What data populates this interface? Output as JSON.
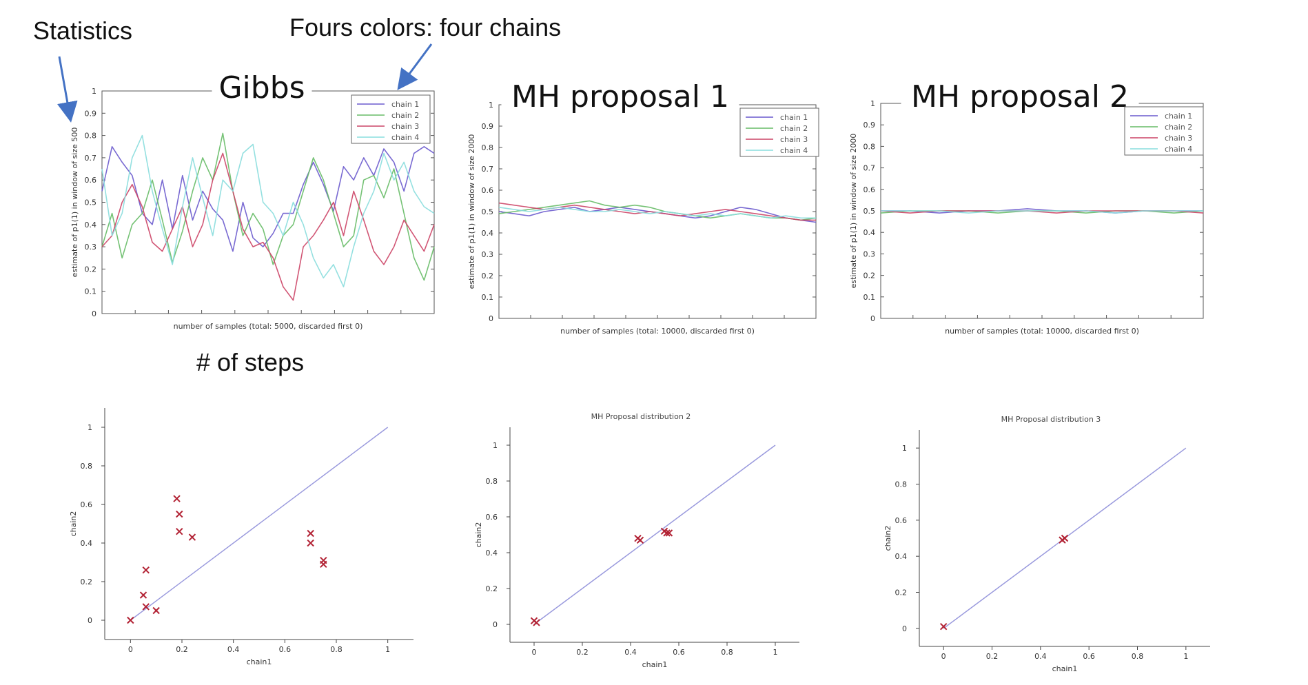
{
  "annotations": {
    "statistics": "Statistics",
    "four_colors": "Fours colors: four chains",
    "steps": "# of steps"
  },
  "colors": {
    "chain1": "#6a5acd",
    "chain2": "#66bb66",
    "chain3": "#cc4466",
    "chain4": "#88dddd",
    "marker": "#b22234",
    "diagonal": "#9999dd",
    "arrow": "#4472c4"
  },
  "chart_data": [
    {
      "type": "line",
      "title": "Gibbs",
      "xlabel": "number of samples (total: 5000, discarded first 0)",
      "ylabel": "estimate of p1(1) in window of size 500",
      "ylim": [
        0,
        1
      ],
      "yticks": [
        "0",
        "0.1",
        "0.2",
        "0.3",
        "0.4",
        "0.5",
        "0.6",
        "0.7",
        "0.8",
        "0.9",
        "1"
      ],
      "legend": "top-right",
      "series": [
        {
          "name": "chain 1",
          "values": [
            0.55,
            0.75,
            0.68,
            0.62,
            0.45,
            0.4,
            0.6,
            0.38,
            0.62,
            0.42,
            0.55,
            0.47,
            0.42,
            0.28,
            0.5,
            0.34,
            0.3,
            0.36,
            0.45,
            0.45,
            0.58,
            0.68,
            0.58,
            0.46,
            0.66,
            0.6,
            0.7,
            0.62,
            0.74,
            0.68,
            0.55,
            0.72,
            0.75,
            0.72
          ]
        },
        {
          "name": "chain 2",
          "values": [
            0.3,
            0.45,
            0.25,
            0.4,
            0.45,
            0.6,
            0.42,
            0.23,
            0.37,
            0.55,
            0.7,
            0.6,
            0.81,
            0.55,
            0.35,
            0.45,
            0.38,
            0.22,
            0.35,
            0.4,
            0.55,
            0.7,
            0.6,
            0.45,
            0.3,
            0.35,
            0.6,
            0.62,
            0.52,
            0.65,
            0.45,
            0.25,
            0.15,
            0.3
          ]
        },
        {
          "name": "chain 3",
          "values": [
            0.3,
            0.35,
            0.5,
            0.58,
            0.48,
            0.32,
            0.28,
            0.38,
            0.48,
            0.3,
            0.4,
            0.6,
            0.72,
            0.55,
            0.38,
            0.3,
            0.32,
            0.25,
            0.12,
            0.06,
            0.3,
            0.35,
            0.42,
            0.5,
            0.35,
            0.55,
            0.42,
            0.28,
            0.22,
            0.3,
            0.42,
            0.35,
            0.28,
            0.4
          ]
        },
        {
          "name": "chain 4",
          "values": [
            0.65,
            0.35,
            0.45,
            0.7,
            0.8,
            0.55,
            0.38,
            0.22,
            0.48,
            0.7,
            0.52,
            0.35,
            0.6,
            0.55,
            0.72,
            0.76,
            0.5,
            0.45,
            0.35,
            0.5,
            0.4,
            0.25,
            0.16,
            0.22,
            0.12,
            0.3,
            0.45,
            0.55,
            0.72,
            0.6,
            0.68,
            0.55,
            0.48,
            0.45
          ]
        }
      ]
    },
    {
      "type": "line",
      "title": "MH proposal 1",
      "xlabel": "number of samples (total: 10000, discarded first 0)",
      "ylabel": "estimate of p1(1) in window of size 2000",
      "ylim": [
        0,
        1
      ],
      "yticks": [
        "0",
        "0.1",
        "0.2",
        "0.3",
        "0.4",
        "0.5",
        "0.6",
        "0.7",
        "0.8",
        "0.9",
        "1"
      ],
      "legend": "top-right",
      "series": [
        {
          "name": "chain 1",
          "values": [
            0.5,
            0.49,
            0.48,
            0.5,
            0.51,
            0.52,
            0.5,
            0.51,
            0.52,
            0.51,
            0.5,
            0.49,
            0.48,
            0.47,
            0.48,
            0.5,
            0.52,
            0.51,
            0.49,
            0.47,
            0.46,
            0.45
          ]
        },
        {
          "name": "chain 2",
          "values": [
            0.49,
            0.5,
            0.51,
            0.52,
            0.53,
            0.54,
            0.55,
            0.53,
            0.52,
            0.53,
            0.52,
            0.5,
            0.49,
            0.48,
            0.47,
            0.48,
            0.49,
            0.48,
            0.47,
            0.47,
            0.46,
            0.47
          ]
        },
        {
          "name": "chain 3",
          "values": [
            0.54,
            0.53,
            0.52,
            0.51,
            0.52,
            0.53,
            0.52,
            0.51,
            0.5,
            0.49,
            0.5,
            0.49,
            0.48,
            0.49,
            0.5,
            0.51,
            0.5,
            0.49,
            0.48,
            0.47,
            0.46,
            0.46
          ]
        },
        {
          "name": "chain 4",
          "values": [
            0.52,
            0.51,
            0.5,
            0.51,
            0.52,
            0.51,
            0.5,
            0.5,
            0.51,
            0.5,
            0.49,
            0.5,
            0.49,
            0.48,
            0.49,
            0.48,
            0.49,
            0.48,
            0.47,
            0.48,
            0.47,
            0.47
          ]
        }
      ]
    },
    {
      "type": "line",
      "title": "MH proposal 2",
      "xlabel": "number of samples (total: 10000, discarded first 0)",
      "ylabel": "estimate of p1(1) in window of size 2000",
      "ylim": [
        0,
        1
      ],
      "yticks": [
        "0",
        "0.1",
        "0.2",
        "0.3",
        "0.4",
        "0.5",
        "0.6",
        "0.7",
        "0.8",
        "0.9",
        "1"
      ],
      "legend": "top-right",
      "series": [
        {
          "name": "chain 1",
          "values": [
            0.5,
            0.5,
            0.49,
            0.5,
            0.5,
            0.51,
            0.5,
            0.5,
            0.49,
            0.5,
            0.5,
            0.5
          ]
        },
        {
          "name": "chain 2",
          "values": [
            0.49,
            0.5,
            0.5,
            0.5,
            0.49,
            0.5,
            0.5,
            0.49,
            0.5,
            0.5,
            0.49,
            0.5
          ]
        },
        {
          "name": "chain 3",
          "values": [
            0.5,
            0.49,
            0.5,
            0.5,
            0.5,
            0.5,
            0.49,
            0.5,
            0.5,
            0.5,
            0.5,
            0.49
          ]
        },
        {
          "name": "chain 4",
          "values": [
            0.5,
            0.5,
            0.5,
            0.49,
            0.5,
            0.5,
            0.5,
            0.5,
            0.49,
            0.5,
            0.5,
            0.5
          ]
        }
      ]
    },
    {
      "type": "scatter",
      "title": "",
      "xlabel": "chain1",
      "ylabel": "chain2",
      "xlim": [
        -0.1,
        1.1
      ],
      "ylim": [
        -0.1,
        1.1
      ],
      "xticks": [
        "0",
        "0.2",
        "0.4",
        "0.6",
        "0.8",
        "1"
      ],
      "yticks": [
        "0",
        "0.2",
        "0.4",
        "0.6",
        "0.8",
        "1"
      ],
      "points": [
        [
          0.0,
          0.0
        ],
        [
          0.05,
          0.13
        ],
        [
          0.06,
          0.07
        ],
        [
          0.1,
          0.05
        ],
        [
          0.06,
          0.26
        ],
        [
          0.18,
          0.63
        ],
        [
          0.19,
          0.55
        ],
        [
          0.19,
          0.46
        ],
        [
          0.24,
          0.43
        ],
        [
          0.7,
          0.45
        ],
        [
          0.7,
          0.4
        ],
        [
          0.75,
          0.31
        ],
        [
          0.75,
          0.29
        ]
      ]
    },
    {
      "type": "scatter",
      "title": "MH  Proposal distribution 2",
      "xlabel": "chain1",
      "ylabel": "chain2",
      "xlim": [
        -0.1,
        1.1
      ],
      "ylim": [
        -0.1,
        1.1
      ],
      "xticks": [
        "0",
        "0.2",
        "0.4",
        "0.6",
        "0.8",
        "1"
      ],
      "yticks": [
        "0",
        "0.2",
        "0.4",
        "0.6",
        "0.8",
        "1"
      ],
      "points": [
        [
          0.0,
          0.02
        ],
        [
          0.01,
          0.01
        ],
        [
          0.43,
          0.48
        ],
        [
          0.44,
          0.47
        ],
        [
          0.55,
          0.51
        ],
        [
          0.54,
          0.52
        ],
        [
          0.56,
          0.51
        ]
      ]
    },
    {
      "type": "scatter",
      "title": "MH  Proposal distribution 3",
      "xlabel": "chain1",
      "ylabel": "chain2",
      "xlim": [
        -0.1,
        1.1
      ],
      "ylim": [
        -0.1,
        1.1
      ],
      "xticks": [
        "0",
        "0.2",
        "0.4",
        "0.6",
        "0.8",
        "1"
      ],
      "yticks": [
        "0",
        "0.2",
        "0.4",
        "0.6",
        "0.8",
        "1"
      ],
      "points": [
        [
          0.0,
          0.01
        ],
        [
          0.49,
          0.49
        ],
        [
          0.5,
          0.5
        ]
      ]
    }
  ]
}
